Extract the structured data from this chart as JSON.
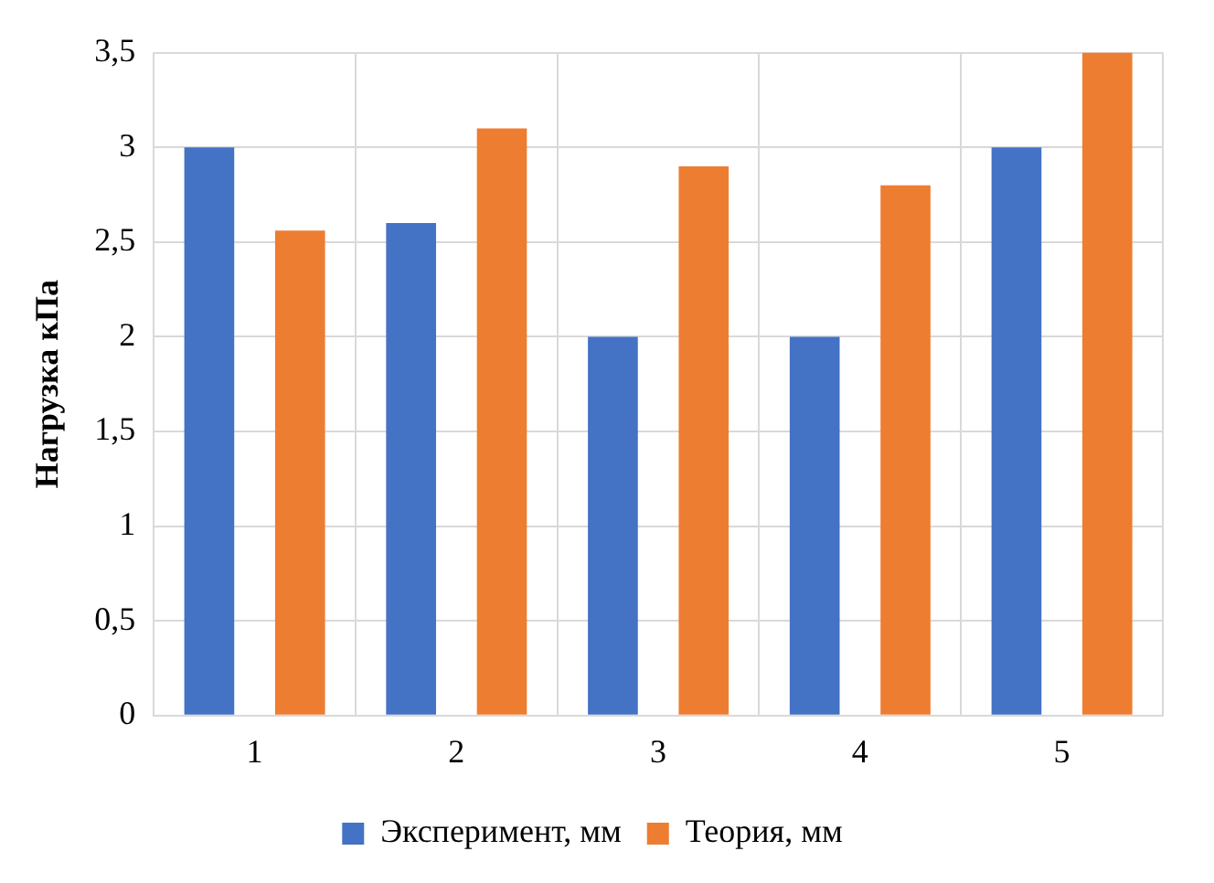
{
  "chart_data": {
    "type": "bar",
    "ylabel": "Нагрузка кПа",
    "categories": [
      "1",
      "2",
      "3",
      "4",
      "5"
    ],
    "series": [
      {
        "name": "Эксперимент, мм",
        "color": "#4472c4",
        "values": [
          3,
          2.6,
          2,
          2,
          3
        ]
      },
      {
        "name": "Теория, мм",
        "color": "#ed7d31",
        "values": [
          2.56,
          3.1,
          2.9,
          2.8,
          3.5
        ]
      }
    ],
    "ylim": [
      0,
      3.5
    ],
    "yticks": [
      0,
      {
        "value": 0.5,
        "label": "0,5"
      },
      1,
      {
        "value": 1.5,
        "label": "1,5"
      },
      2,
      {
        "value": 2.5,
        "label": "2,5"
      },
      3,
      {
        "value": 3.5,
        "label": "3,5"
      }
    ],
    "grid": true,
    "legend": "bottom"
  }
}
